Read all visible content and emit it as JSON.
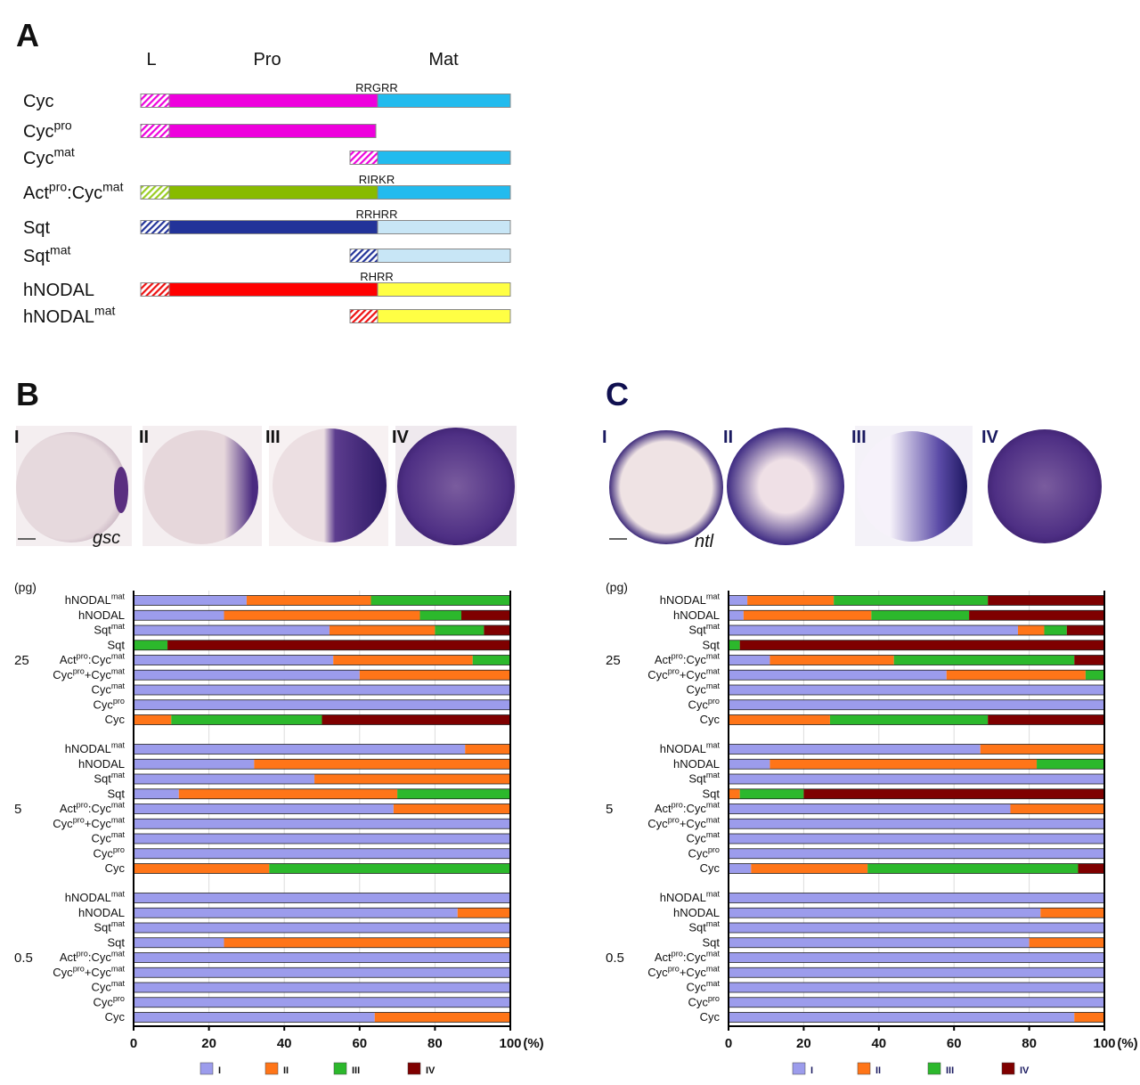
{
  "panel_a": {
    "letter": "A",
    "headers": [
      "L",
      "Pro",
      "Mat"
    ],
    "constructs": [
      {
        "name": [
          "Cyc"
        ],
        "site": "RRGRR",
        "l_color": "#ee00dd",
        "pro_color": "#ee00dd",
        "mat_color": "#22bbee"
      },
      {
        "name": [
          "Cyc",
          "pro"
        ],
        "l_color": "#ee00dd",
        "pro_color": "#ee00dd",
        "mat_color": null
      },
      {
        "name": [
          "Cyc",
          "mat"
        ],
        "l_color": "#ee00dd",
        "pro_color": null,
        "mat_color": "#22bbee"
      },
      {
        "name": [
          "Act",
          "pro",
          ":Cyc",
          "mat"
        ],
        "site": "RIRKR",
        "l_color": "#99cc22",
        "pro_color": "#88bb00",
        "mat_color": "#22bbee"
      },
      {
        "name": [
          "Sqt"
        ],
        "site": "RRHRR",
        "l_color": "#223399",
        "pro_color": "#223399",
        "mat_color": "#c8e6f6"
      },
      {
        "name": [
          "Sqt",
          "mat"
        ],
        "l_color": "#223399",
        "pro_color": null,
        "mat_color": "#c8e6f6"
      },
      {
        "name": [
          "hNODAL"
        ],
        "site": "RHRR",
        "l_color": "#ee1111",
        "pro_color": "#ff0000",
        "mat_color": "#ffff44"
      },
      {
        "name": [
          "hNODAL",
          "mat"
        ],
        "l_color": "#ee1111",
        "pro_color": null,
        "mat_color": "#ffff44"
      }
    ]
  },
  "panel_b": {
    "letter": "B",
    "stages": [
      "I",
      "II",
      "III",
      "IV"
    ],
    "gene": "gsc"
  },
  "panel_c": {
    "letter": "C",
    "stages": [
      "I",
      "II",
      "III",
      "IV"
    ],
    "gene": "ntl"
  },
  "chart_data": [
    {
      "type": "bar",
      "orientation": "horizontal",
      "stacked": true,
      "y_unit": "(pg)",
      "x_unit": "(%)",
      "xlim": [
        0,
        100
      ],
      "xticks": [
        0,
        20,
        40,
        60,
        80,
        100
      ],
      "grid": true,
      "groups": [
        "25",
        "5",
        "0.5"
      ],
      "categories": [
        [
          "hNODAL",
          "mat"
        ],
        [
          "hNODAL"
        ],
        [
          "Sqt",
          "mat"
        ],
        [
          "Sqt"
        ],
        [
          "Act",
          "pro",
          ":Cyc",
          "mat"
        ],
        [
          "Cyc",
          "pro",
          "+Cyc",
          "mat"
        ],
        [
          "Cyc",
          "mat"
        ],
        [
          "Cyc",
          "pro"
        ],
        [
          "Cyc"
        ]
      ],
      "series": [
        {
          "name": "I",
          "color": "#9c9cec",
          "values": [
            [
              30,
              24,
              52,
              0,
              53,
              60,
              100,
              100,
              0
            ],
            [
              88,
              32,
              48,
              12,
              69,
              100,
              100,
              100,
              0
            ],
            [
              100,
              86,
              100,
              24,
              100,
              100,
              100,
              100,
              64
            ]
          ]
        },
        {
          "name": "II",
          "color": "#ff7518",
          "values": [
            [
              33,
              52,
              28,
              0,
              37,
              40,
              0,
              0,
              10
            ],
            [
              12,
              68,
              52,
              58,
              31,
              0,
              0,
              0,
              36
            ],
            [
              0,
              14,
              0,
              76,
              0,
              0,
              0,
              0,
              36
            ]
          ]
        },
        {
          "name": "III",
          "color": "#2cb82c",
          "values": [
            [
              37,
              11,
              13,
              9,
              10,
              0,
              0,
              0,
              40
            ],
            [
              0,
              0,
              0,
              30,
              0,
              0,
              0,
              0,
              64
            ],
            [
              0,
              0,
              0,
              0,
              0,
              0,
              0,
              0,
              0
            ]
          ]
        },
        {
          "name": "IV",
          "color": "#7f0000",
          "values": [
            [
              0,
              13,
              7,
              91,
              0,
              0,
              0,
              0,
              50
            ],
            [
              0,
              0,
              0,
              0,
              0,
              0,
              0,
              0,
              0
            ],
            [
              0,
              0,
              0,
              0,
              0,
              0,
              0,
              0,
              0
            ]
          ]
        }
      ]
    },
    {
      "type": "bar",
      "orientation": "horizontal",
      "stacked": true,
      "y_unit": "(pg)",
      "x_unit": "(%)",
      "xlim": [
        0,
        100
      ],
      "xticks": [
        0,
        20,
        40,
        60,
        80,
        100
      ],
      "grid": true,
      "groups": [
        "25",
        "5",
        "0.5"
      ],
      "categories": [
        [
          "hNODAL",
          "mat"
        ],
        [
          "hNODAL"
        ],
        [
          "Sqt",
          "mat"
        ],
        [
          "Sqt"
        ],
        [
          "Act",
          "pro",
          ":Cyc",
          "mat"
        ],
        [
          "Cyc",
          "pro",
          "+Cyc",
          "mat"
        ],
        [
          "Cyc",
          "mat"
        ],
        [
          "Cyc",
          "pro"
        ],
        [
          "Cyc"
        ]
      ],
      "series": [
        {
          "name": "I",
          "color": "#9c9cec",
          "values": [
            [
              5,
              4,
              77,
              0,
              11,
              58,
              100,
              100,
              0
            ],
            [
              67,
              11,
              100,
              0,
              75,
              100,
              100,
              100,
              6
            ],
            [
              100,
              83,
              100,
              80,
              100,
              100,
              100,
              100,
              92
            ]
          ]
        },
        {
          "name": "II",
          "color": "#ff7518",
          "values": [
            [
              23,
              34,
              7,
              0,
              33,
              37,
              0,
              0,
              27
            ],
            [
              33,
              71,
              0,
              3,
              25,
              0,
              0,
              0,
              31
            ],
            [
              0,
              17,
              0,
              20,
              0,
              0,
              0,
              0,
              8
            ]
          ]
        },
        {
          "name": "III",
          "color": "#2cb82c",
          "values": [
            [
              41,
              26,
              6,
              3,
              48,
              5,
              0,
              0,
              42
            ],
            [
              0,
              18,
              0,
              17,
              0,
              0,
              0,
              0,
              56
            ],
            [
              0,
              0,
              0,
              0,
              0,
              0,
              0,
              0,
              0
            ]
          ]
        },
        {
          "name": "IV",
          "color": "#7f0000",
          "values": [
            [
              31,
              36,
              10,
              97,
              8,
              0,
              0,
              0,
              31
            ],
            [
              0,
              0,
              0,
              80,
              0,
              0,
              0,
              0,
              7
            ],
            [
              0,
              0,
              0,
              0,
              0,
              0,
              0,
              0,
              0
            ]
          ]
        }
      ]
    }
  ]
}
